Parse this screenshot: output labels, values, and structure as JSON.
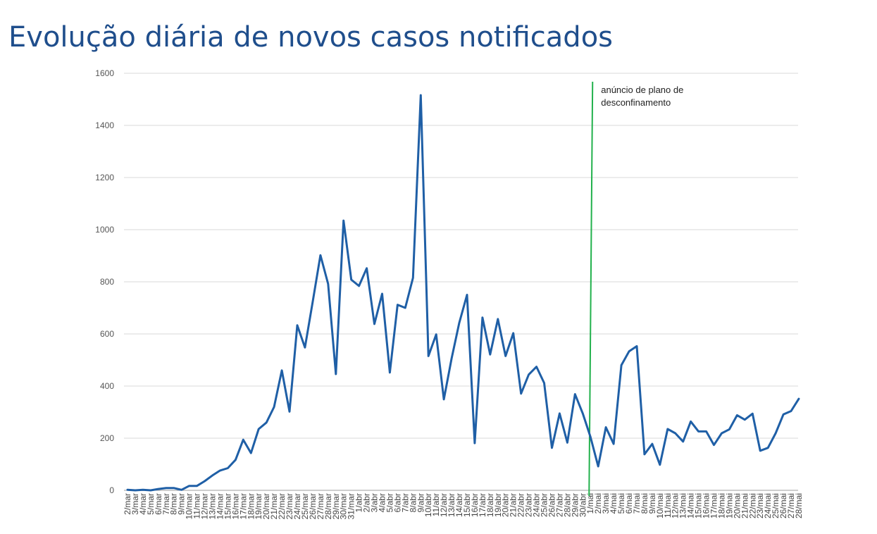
{
  "page": {
    "title": "Evolução diária de novos casos notificados"
  },
  "chart_data": {
    "type": "line",
    "title": "",
    "xlabel": "",
    "ylabel": "",
    "ylim": [
      0,
      1600
    ],
    "yticks": [
      0,
      200,
      400,
      600,
      800,
      1000,
      1200,
      1400,
      1600
    ],
    "grid": true,
    "legend": "none",
    "categories": [
      "2/mar",
      "3/mar",
      "4/mar",
      "5/mar",
      "6/mar",
      "7/mar",
      "8/mar",
      "9/mar",
      "10/mar",
      "11/mar",
      "12/mar",
      "13/mar",
      "14/mar",
      "15/mar",
      "16/mar",
      "17/mar",
      "18/mar",
      "19/mar",
      "20/mar",
      "21/mar",
      "22/mar",
      "23/mar",
      "24/mar",
      "25/mar",
      "26/mar",
      "27/mar",
      "28/mar",
      "29/mar",
      "30/mar",
      "31/mar",
      "1/abr",
      "2/abr",
      "3/abr",
      "4/abr",
      "5/abr",
      "6/abr",
      "7/abr",
      "8/abr",
      "9/abr",
      "10/abr",
      "11/abr",
      "12/abr",
      "13/abr",
      "14/abr",
      "15/abr",
      "16/abr",
      "17/abr",
      "18/abr",
      "19/abr",
      "20/abr",
      "21/abr",
      "22/abr",
      "23/abr",
      "24/abr",
      "25/abr",
      "26/abr",
      "27/abr",
      "28/abr",
      "29/abr",
      "30/abr",
      "1/mai",
      "2/mai",
      "3/mai",
      "4/mai",
      "5/mai",
      "6/mai",
      "7/mai",
      "8/mai",
      "9/mai",
      "10/mai",
      "11/mai",
      "12/mai",
      "13/mai",
      "14/mai",
      "15/mai",
      "16/mai",
      "17/mai",
      "18/mai",
      "19/mai",
      "20/mai",
      "21/mai",
      "22/mai",
      "23/mai",
      "24/mai",
      "25/mai",
      "26/mai",
      "27/mai",
      "28/mai"
    ],
    "series": [
      {
        "name": "",
        "color": "#1f5fa6",
        "values": [
          2,
          0,
          2,
          0,
          5,
          9,
          9,
          2,
          17,
          17,
          35,
          57,
          76,
          85,
          117,
          194,
          143,
          235,
          260,
          320,
          460,
          302,
          633,
          548,
          723,
          902,
          792,
          446,
          1035,
          808,
          784,
          852,
          638,
          754,
          452,
          712,
          700,
          815,
          1516,
          515,
          598,
          349,
          506,
          643,
          750,
          181,
          663,
          521,
          657,
          515,
          603,
          371,
          444,
          474,
          412,
          163,
          295,
          183,
          369,
          295,
          205,
          92,
          242,
          178,
          480,
          533,
          553,
          138,
          178,
          98,
          235,
          219,
          187,
          264,
          226,
          226,
          174,
          219,
          234,
          288,
          271,
          294,
          152,
          163,
          219,
          291,
          304,
          351
        ]
      }
    ],
    "annotations": [
      {
        "type": "vline",
        "at_category": "1/mai",
        "color": "#22b14c",
        "label_lines": [
          "anúncio de plano de",
          "desconfinamento"
        ]
      }
    ]
  }
}
